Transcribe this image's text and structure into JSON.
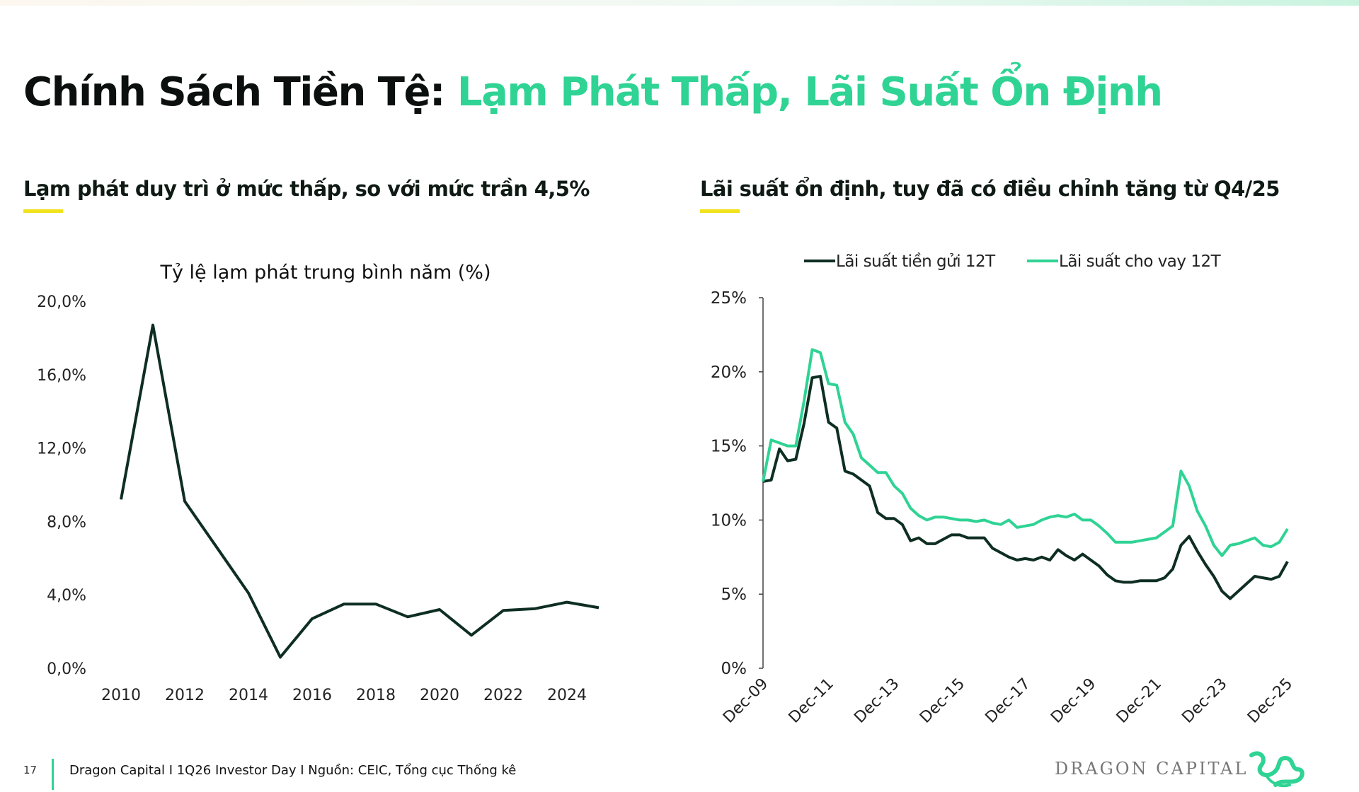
{
  "header": {
    "title_dark": "Chính Sách Tiền Tệ:",
    "title_accent": "Lạm Phát Thấp, Lãi Suất Ổn Định"
  },
  "left_panel": {
    "subtitle": "Lạm phát duy trì ở mức thấp, so với mức trần 4,5%"
  },
  "right_panel": {
    "subtitle": "Lãi suất ổn định, tuy đã có điều chỉnh tăng từ Q4/25"
  },
  "footer": {
    "page_number": "17",
    "text": "Dragon Capital I 1Q26 Investor Day I Nguồn: CEIC, Tổng cục Thống kê",
    "logo": "DRAGON CAPITAL"
  },
  "colors": {
    "dark": "#0e2e22",
    "accent": "#2fd394",
    "highlight": "#f2e21c"
  },
  "chart_data": [
    {
      "type": "line",
      "title": "Tỷ lệ lạm phát trung bình năm (%)",
      "x": [
        2010,
        2011,
        2012,
        2013,
        2014,
        2015,
        2016,
        2017,
        2018,
        2019,
        2020,
        2021,
        2022,
        2023,
        2024,
        2025
      ],
      "values": [
        9.2,
        18.7,
        9.1,
        6.6,
        4.1,
        0.6,
        2.7,
        3.5,
        3.5,
        2.8,
        3.2,
        1.8,
        3.15,
        3.25,
        3.6,
        3.3
      ],
      "xticks": [
        "2010",
        "2012",
        "2014",
        "2016",
        "2018",
        "2020",
        "2022",
        "2024"
      ],
      "yticks": [
        "0,0%",
        "4,0%",
        "8,0%",
        "12,0%",
        "16,0%",
        "20,0%"
      ],
      "ylim": [
        0,
        20
      ],
      "grid": false,
      "color": "#0e2e22"
    },
    {
      "type": "line",
      "legend": "top",
      "xticks": [
        "Dec-09",
        "Dec-11",
        "Dec-13",
        "Dec-15",
        "Dec-17",
        "Dec-19",
        "Dec-21",
        "Dec-23",
        "Dec-25"
      ],
      "yticks": [
        "0%",
        "5%",
        "10%",
        "15%",
        "20%",
        "25%"
      ],
      "ylim": [
        0,
        25
      ],
      "grid": false,
      "x": [
        "2009-12",
        "2010-03",
        "2010-06",
        "2010-09",
        "2010-12",
        "2011-03",
        "2011-06",
        "2011-09",
        "2011-12",
        "2012-03",
        "2012-06",
        "2012-09",
        "2012-12",
        "2013-03",
        "2013-06",
        "2013-09",
        "2013-12",
        "2014-03",
        "2014-06",
        "2014-09",
        "2014-12",
        "2015-03",
        "2015-06",
        "2015-09",
        "2015-12",
        "2016-03",
        "2016-06",
        "2016-09",
        "2016-12",
        "2017-03",
        "2017-06",
        "2017-09",
        "2017-12",
        "2018-03",
        "2018-06",
        "2018-09",
        "2018-12",
        "2019-03",
        "2019-06",
        "2019-09",
        "2019-12",
        "2020-03",
        "2020-06",
        "2020-09",
        "2020-12",
        "2021-03",
        "2021-06",
        "2021-09",
        "2021-12",
        "2022-03",
        "2022-06",
        "2022-09",
        "2022-12",
        "2023-03",
        "2023-06",
        "2023-09",
        "2023-12",
        "2024-03",
        "2024-06",
        "2024-09",
        "2024-12",
        "2025-03",
        "2025-06",
        "2025-09",
        "2025-12"
      ],
      "series": [
        {
          "name": "Lãi suất tiền gửi 12T",
          "color": "#0e2e22",
          "values": [
            12.6,
            12.7,
            14.8,
            14.0,
            14.1,
            16.5,
            19.6,
            19.7,
            16.6,
            16.2,
            13.3,
            13.1,
            12.7,
            12.3,
            10.5,
            10.1,
            10.1,
            9.7,
            8.6,
            8.8,
            8.4,
            8.4,
            8.7,
            9.0,
            9.0,
            8.8,
            8.8,
            8.8,
            8.1,
            7.8,
            7.5,
            7.3,
            7.4,
            7.3,
            7.5,
            7.3,
            8.0,
            7.6,
            7.3,
            7.7,
            7.3,
            6.9,
            6.3,
            5.9,
            5.8,
            5.8,
            5.9,
            5.9,
            5.9,
            6.1,
            6.7,
            8.3,
            8.9,
            7.9,
            7.0,
            6.2,
            5.2,
            4.7,
            5.2,
            5.7,
            6.2,
            6.1,
            6.0,
            6.2,
            7.2
          ]
        },
        {
          "name": "Lãi suất cho vay 12T",
          "color": "#2fd394",
          "values": [
            12.6,
            15.4,
            15.2,
            15.0,
            15.0,
            18.0,
            21.5,
            21.3,
            19.2,
            19.1,
            16.6,
            15.8,
            14.2,
            13.7,
            13.2,
            13.2,
            12.3,
            11.8,
            10.8,
            10.3,
            10.0,
            10.2,
            10.2,
            10.1,
            10.0,
            10.0,
            9.9,
            10.0,
            9.8,
            9.7,
            10.0,
            9.5,
            9.6,
            9.7,
            10.0,
            10.2,
            10.3,
            10.2,
            10.4,
            10.0,
            10.0,
            9.6,
            9.1,
            8.5,
            8.5,
            8.5,
            8.6,
            8.7,
            8.8,
            9.2,
            9.6,
            13.3,
            12.3,
            10.6,
            9.6,
            8.3,
            7.6,
            8.3,
            8.4,
            8.6,
            8.8,
            8.3,
            8.2,
            8.5,
            9.4
          ]
        }
      ]
    }
  ]
}
